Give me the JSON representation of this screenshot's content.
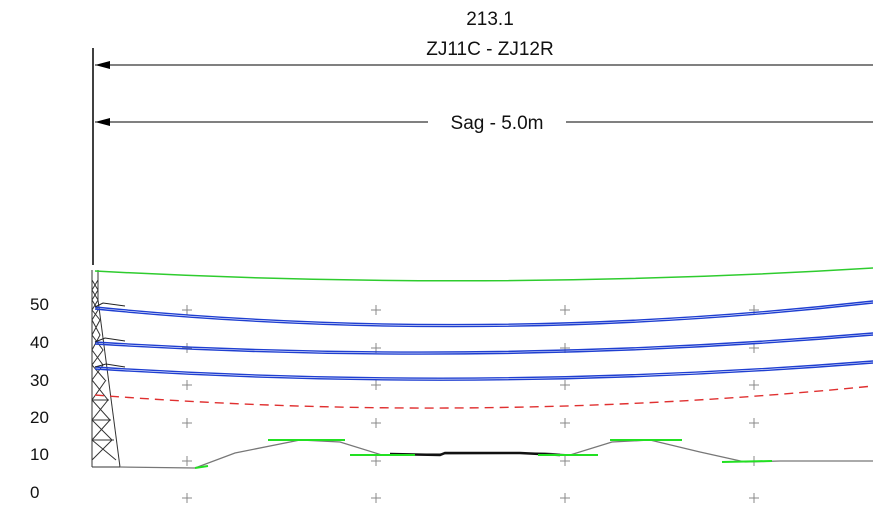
{
  "header": {
    "span_length": "213.1",
    "span_name": "ZJ11C - ZJ12R",
    "sag_label": "Sag - 5.0m"
  },
  "y_axis": {
    "ticks": [
      "0",
      "10",
      "20",
      "30",
      "40",
      "50"
    ]
  },
  "colors": {
    "clearance_line": "#2ecc2e",
    "conductors": "#1f3fd1",
    "safety_line": "#e03030",
    "ground": "#777777",
    "markers": "#22e022",
    "tower": "#333333"
  }
}
